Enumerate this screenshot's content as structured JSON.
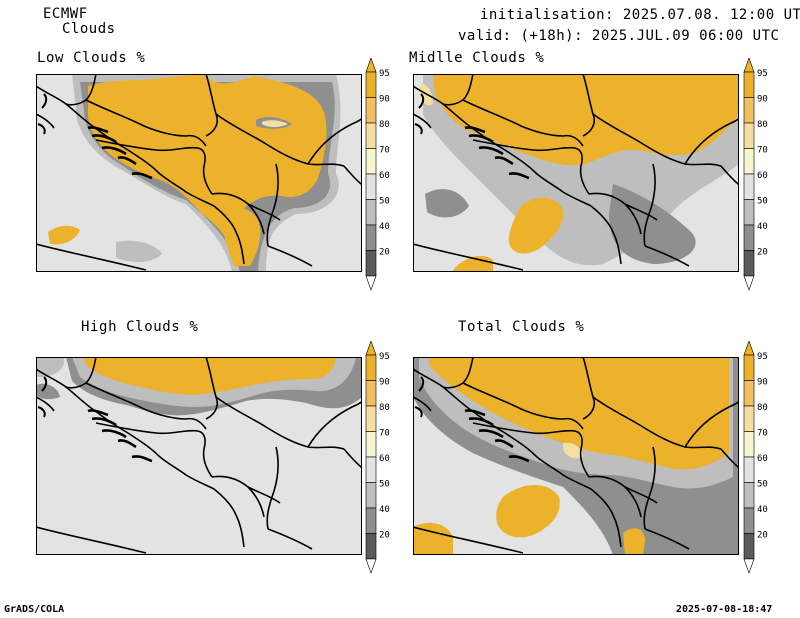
{
  "header": {
    "model": "ECMWF",
    "product": "Clouds",
    "initialisation": "initialisation: 2025.07.08. 12:00 UTC",
    "valid": "valid: (+18h): 2025.JUL.09 06:00 UTC"
  },
  "panels": [
    {
      "title": "Low Clouds %"
    },
    {
      "title": "Midlle Clouds %"
    },
    {
      "title": "High Clouds %"
    },
    {
      "title": "Total Clouds %"
    }
  ],
  "colorbar": {
    "levels": [
      "95",
      "90",
      "80",
      "70",
      "60",
      "50",
      "40",
      "20"
    ],
    "colors": {
      "c95": "#ecb22c",
      "c90": "#f1c060",
      "c80": "#f5dea2",
      "c70": "#f7f7cf",
      "c60": "#e3e3e3",
      "c50": "#bebebe",
      "c40": "#8f8f8f",
      "c20": "#5b5b5b",
      "under": "#ffffff"
    }
  },
  "footer": {
    "left": "GrADS/COLA",
    "right": "2025-07-08-18:47"
  }
}
